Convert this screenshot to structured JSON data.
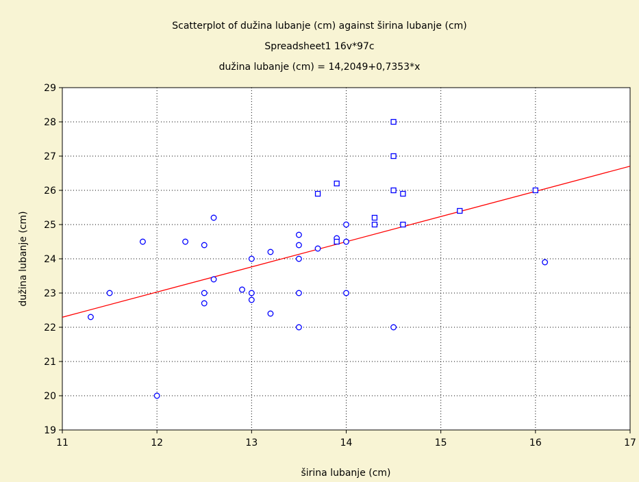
{
  "colors": {
    "background": "#f8f4d4",
    "plot_background": "#ffffff",
    "point_color": "#0000ff",
    "fit_line": "#ff0000",
    "grid": "#000000"
  },
  "chart_data": {
    "type": "scatter",
    "title": "Scatterplot of dužina lubanje (cm) against širina lubanje (cm)",
    "subtitle": "Spreadsheet1 16v*97c",
    "equation": "dužina lubanje (cm) = 14,2049+0,7353*x",
    "xlabel": "širina lubanje (cm)",
    "ylabel": "dužina lubanje (cm)",
    "xlim": [
      11,
      17
    ],
    "ylim": [
      19,
      29
    ],
    "xticks": [
      11,
      12,
      13,
      14,
      15,
      16,
      17
    ],
    "yticks": [
      19,
      20,
      21,
      22,
      23,
      24,
      25,
      26,
      27,
      28,
      29
    ],
    "grid": "dotted",
    "fit": {
      "intercept": 14.2049,
      "slope": 0.7353
    },
    "series": [
      {
        "marker": "circle",
        "points": [
          [
            11.3,
            22.3
          ],
          [
            11.5,
            23.0
          ],
          [
            11.85,
            24.5
          ],
          [
            12.0,
            20.0
          ],
          [
            12.3,
            24.5
          ],
          [
            12.5,
            24.4
          ],
          [
            12.5,
            23.0
          ],
          [
            12.5,
            22.7
          ],
          [
            12.6,
            25.2
          ],
          [
            12.6,
            23.4
          ],
          [
            12.9,
            23.1
          ],
          [
            13.0,
            24.0
          ],
          [
            13.0,
            23.0
          ],
          [
            13.0,
            22.8
          ],
          [
            13.2,
            24.2
          ],
          [
            13.2,
            22.4
          ],
          [
            13.5,
            24.7
          ],
          [
            13.5,
            24.4
          ],
          [
            13.5,
            24.0
          ],
          [
            13.5,
            23.0
          ],
          [
            13.5,
            22.0
          ],
          [
            13.7,
            24.3
          ],
          [
            13.9,
            24.6
          ],
          [
            14.0,
            25.0
          ],
          [
            14.0,
            24.5
          ],
          [
            14.0,
            23.0
          ],
          [
            14.5,
            22.0
          ],
          [
            16.1,
            23.9
          ]
        ]
      },
      {
        "marker": "square",
        "points": [
          [
            13.7,
            25.9
          ],
          [
            13.9,
            26.2
          ],
          [
            13.9,
            24.5
          ],
          [
            14.3,
            25.2
          ],
          [
            14.3,
            25.0
          ],
          [
            14.5,
            28.0
          ],
          [
            14.5,
            27.0
          ],
          [
            14.5,
            26.0
          ],
          [
            14.6,
            25.9
          ],
          [
            14.6,
            25.0
          ],
          [
            15.2,
            25.4
          ],
          [
            16.0,
            26.0
          ]
        ]
      }
    ]
  }
}
